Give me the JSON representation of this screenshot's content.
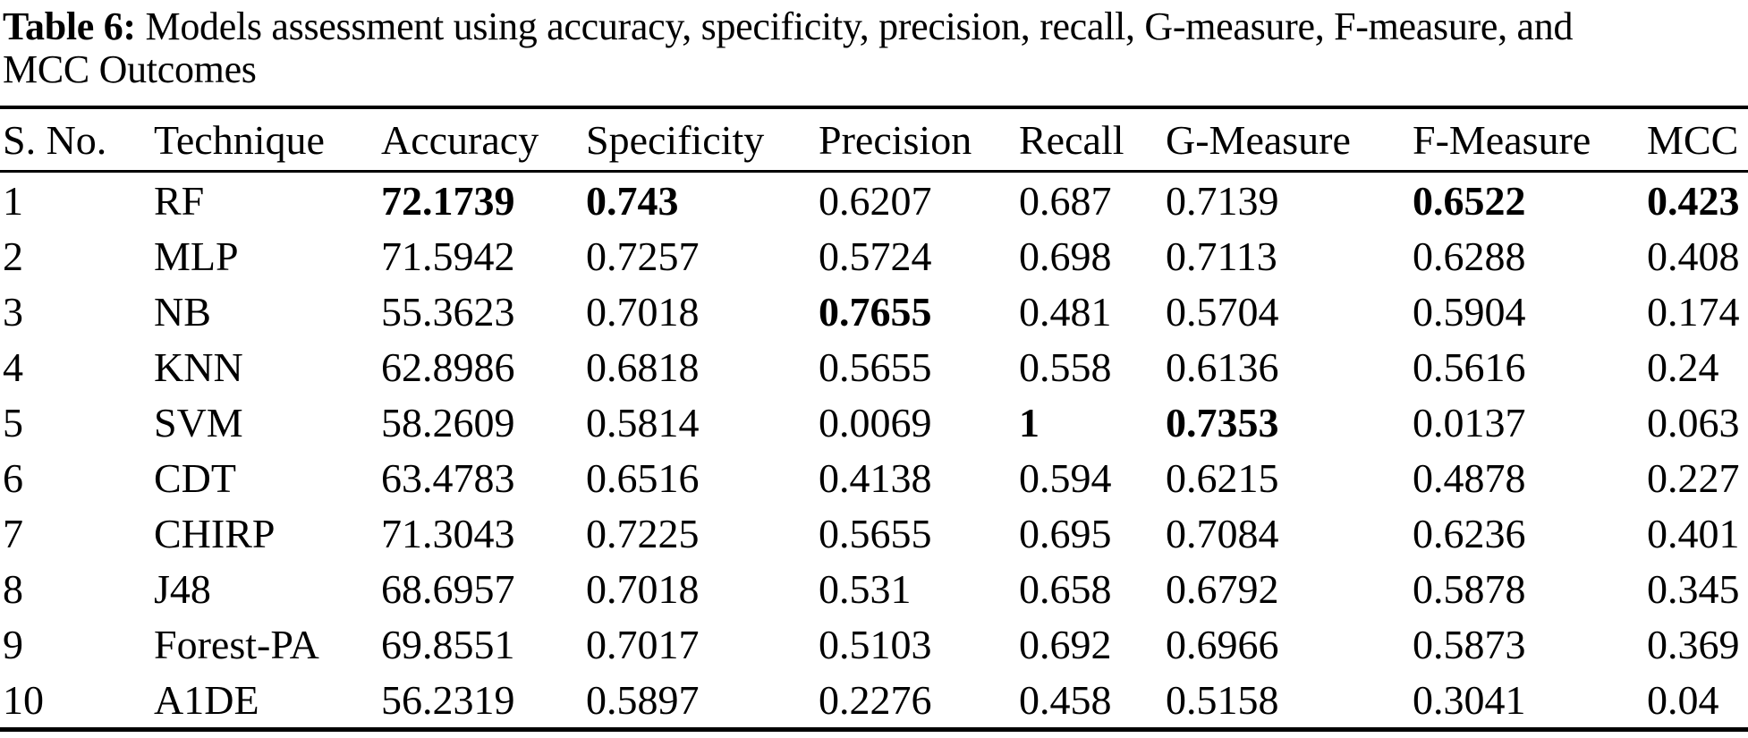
{
  "caption": {
    "label": "Table 6:",
    "text_line1": " Models assessment using accuracy, specificity, precision, recall, G-measure, F-measure, and",
    "text_line2": "MCC Outcomes"
  },
  "table": {
    "columns": [
      "S. No.",
      "Technique",
      "Accuracy",
      "Specificity",
      "Precision",
      "Recall",
      "G-Measure",
      "F-Measure",
      "MCC"
    ],
    "rows": [
      {
        "cells": [
          "1",
          "RF",
          "72.1739",
          "0.743",
          "0.6207",
          "0.687",
          "0.7139",
          "0.6522",
          "0.423"
        ],
        "bold_cols": [
          2,
          3,
          7,
          8
        ]
      },
      {
        "cells": [
          "2",
          "MLP",
          "71.5942",
          "0.7257",
          "0.5724",
          "0.698",
          "0.7113",
          "0.6288",
          "0.408"
        ],
        "bold_cols": []
      },
      {
        "cells": [
          "3",
          "NB",
          "55.3623",
          "0.7018",
          "0.7655",
          "0.481",
          "0.5704",
          "0.5904",
          "0.174"
        ],
        "bold_cols": [
          4
        ]
      },
      {
        "cells": [
          "4",
          "KNN",
          "62.8986",
          "0.6818",
          "0.5655",
          "0.558",
          "0.6136",
          "0.5616",
          "0.24"
        ],
        "bold_cols": []
      },
      {
        "cells": [
          "5",
          "SVM",
          "58.2609",
          "0.5814",
          "0.0069",
          "1",
          "0.7353",
          "0.0137",
          "0.063"
        ],
        "bold_cols": [
          5,
          6
        ]
      },
      {
        "cells": [
          "6",
          "CDT",
          "63.4783",
          "0.6516",
          "0.4138",
          "0.594",
          "0.6215",
          "0.4878",
          "0.227"
        ],
        "bold_cols": []
      },
      {
        "cells": [
          "7",
          "CHIRP",
          "71.3043",
          "0.7225",
          "0.5655",
          "0.695",
          "0.7084",
          "0.6236",
          "0.401"
        ],
        "bold_cols": []
      },
      {
        "cells": [
          "8",
          "J48",
          "68.6957",
          "0.7018",
          "0.531",
          "0.658",
          "0.6792",
          "0.5878",
          "0.345"
        ],
        "bold_cols": []
      },
      {
        "cells": [
          "9",
          "Forest-PA",
          "69.8551",
          "0.7017",
          "0.5103",
          "0.692",
          "0.6966",
          "0.5873",
          "0.369"
        ],
        "bold_cols": []
      },
      {
        "cells": [
          "10",
          "A1DE",
          "56.2319",
          "0.5897",
          "0.2276",
          "0.458",
          "0.5158",
          "0.3041",
          "0.04"
        ],
        "bold_cols": []
      }
    ]
  },
  "colors": {
    "text": "#000000",
    "background": "#ffffff",
    "rule": "#000000"
  }
}
